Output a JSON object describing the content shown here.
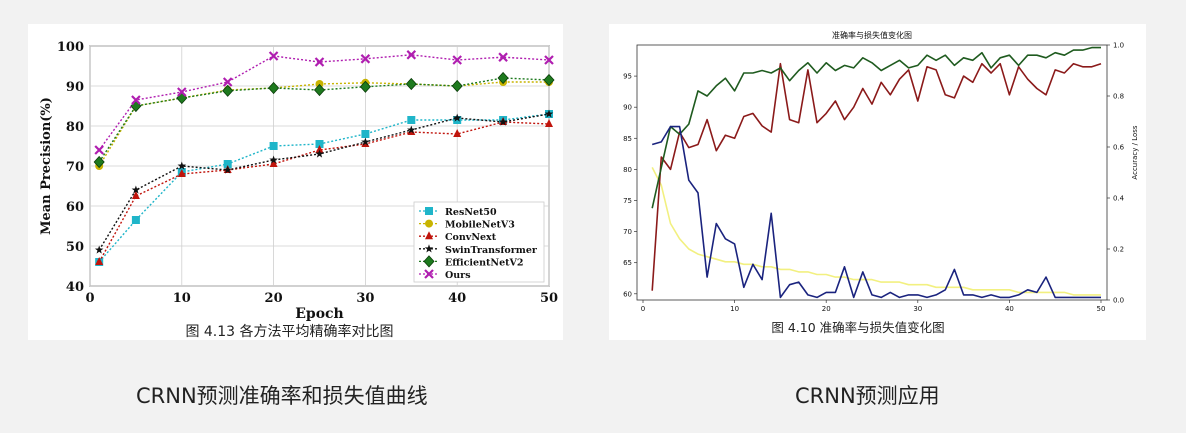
{
  "captions": {
    "left": "CRNN预测准确率和损失值曲线",
    "right": "CRNN预测应用"
  },
  "chart_data": [
    {
      "type": "line",
      "title": "",
      "figure_caption": "图 4.13  各方法平均精确率对比图",
      "xlabel": "Epoch",
      "ylabel": "Mean Precision(%)",
      "xlim": [
        0,
        50
      ],
      "ylim": [
        40,
        100
      ],
      "xticks": [
        0,
        10,
        20,
        30,
        40,
        50
      ],
      "yticks": [
        40,
        50,
        60,
        70,
        80,
        90,
        100
      ],
      "grid": true,
      "legend_position": "lower-right",
      "x": [
        1,
        5,
        10,
        15,
        20,
        25,
        30,
        35,
        40,
        45,
        50
      ],
      "series": [
        {
          "name": "ResNet50",
          "color": "#1fb5c9",
          "marker": "square",
          "values": [
            46,
            56.5,
            68.5,
            70.5,
            75,
            75.5,
            78,
            81.5,
            81.5,
            81.5,
            83
          ]
        },
        {
          "name": "MobileNetV3",
          "color": "#c8b400",
          "marker": "circle",
          "values": [
            70,
            85,
            87,
            89,
            89.5,
            90.5,
            90.8,
            90.5,
            90,
            91,
            91
          ]
        },
        {
          "name": "ConvNext",
          "color": "#c0140c",
          "marker": "triangle",
          "values": [
            46,
            62.5,
            68,
            69,
            70.5,
            74,
            75.5,
            78.5,
            78,
            81,
            80.5
          ]
        },
        {
          "name": "SwinTransformer",
          "color": "#111111",
          "marker": "star",
          "values": [
            49,
            64,
            70,
            69,
            71.5,
            73,
            76,
            79,
            82,
            81,
            83
          ]
        },
        {
          "name": "EfficientNetV2",
          "color": "#1e7a1e",
          "marker": "diamond",
          "values": [
            71,
            85,
            87,
            88.8,
            89.5,
            89,
            89.8,
            90.5,
            90,
            92,
            91.5
          ]
        },
        {
          "name": "Ours",
          "color": "#b01eb0",
          "marker": "x",
          "values": [
            74,
            86.5,
            88.5,
            91,
            97.5,
            96,
            96.8,
            97.8,
            96.5,
            97.2,
            96.5
          ]
        }
      ]
    },
    {
      "type": "line",
      "title": "准确率与损失值变化图",
      "figure_caption": "图 4.10  准确率与损失值变化图",
      "xlabel": "",
      "ylabel_left": "",
      "ylabel_right": "Accuracy / Loss",
      "xlim": [
        0,
        50
      ],
      "ylim_left": [
        59,
        100
      ],
      "ylim_right": [
        0,
        1.0
      ],
      "xticks": [
        0,
        10,
        20,
        30,
        40,
        50
      ],
      "yticks_left": [
        60,
        65,
        70,
        75,
        80,
        85,
        90,
        95
      ],
      "yticks_right": [
        "0.0",
        "0.2",
        "0.4",
        "0.6",
        "0.8",
        "1.0"
      ],
      "grid": false,
      "x": [
        1,
        2,
        3,
        4,
        5,
        6,
        7,
        8,
        9,
        10,
        11,
        12,
        13,
        14,
        15,
        16,
        17,
        18,
        19,
        20,
        21,
        22,
        23,
        24,
        25,
        26,
        27,
        28,
        29,
        30,
        31,
        32,
        33,
        34,
        35,
        36,
        37,
        38,
        39,
        40,
        41,
        42,
        43,
        44,
        45,
        46,
        47,
        48,
        49,
        50
      ],
      "series": [
        {
          "axis": "left",
          "color": "#8b1a1a",
          "values": [
            60.5,
            82,
            80,
            86,
            83.5,
            84,
            88,
            83,
            85.5,
            85,
            88.5,
            89,
            87,
            86,
            97,
            88,
            87.5,
            96,
            87.5,
            89,
            91,
            88,
            90,
            93,
            90.5,
            94,
            92,
            94.5,
            96,
            91,
            96.5,
            96,
            92,
            91.5,
            95,
            94,
            97,
            95.5,
            97,
            92,
            96.5,
            94.5,
            93,
            92,
            96,
            95.5,
            97,
            96.5,
            96.5,
            97
          ]
        },
        {
          "axis": "right",
          "color": "#1f5b1f",
          "values": [
            0.36,
            0.52,
            0.68,
            0.65,
            0.69,
            0.82,
            0.8,
            0.84,
            0.87,
            0.82,
            0.89,
            0.89,
            0.9,
            0.89,
            0.91,
            0.86,
            0.9,
            0.93,
            0.89,
            0.93,
            0.9,
            0.92,
            0.91,
            0.95,
            0.93,
            0.9,
            0.92,
            0.94,
            0.91,
            0.92,
            0.96,
            0.94,
            0.96,
            0.92,
            0.95,
            0.94,
            0.97,
            0.91,
            0.95,
            0.96,
            0.92,
            0.96,
            0.96,
            0.95,
            0.97,
            0.96,
            0.98,
            0.98,
            0.99,
            0.99
          ]
        },
        {
          "axis": "right",
          "color": "#1a237e",
          "values": [
            0.61,
            0.62,
            0.68,
            0.68,
            0.47,
            0.42,
            0.09,
            0.3,
            0.24,
            0.22,
            0.05,
            0.14,
            0.08,
            0.34,
            0.01,
            0.06,
            0.07,
            0.02,
            0.01,
            0.03,
            0.03,
            0.13,
            0.01,
            0.11,
            0.02,
            0.01,
            0.03,
            0.01,
            0.02,
            0.02,
            0.01,
            0.02,
            0.04,
            0.12,
            0.02,
            0.02,
            0.01,
            0.02,
            0.01,
            0.01,
            0.02,
            0.04,
            0.03,
            0.09,
            0.01,
            0.01,
            0.01,
            0.01,
            0.01,
            0.01
          ]
        },
        {
          "axis": "right",
          "color": "#f2f080",
          "values": [
            0.52,
            0.45,
            0.3,
            0.24,
            0.2,
            0.18,
            0.17,
            0.16,
            0.15,
            0.15,
            0.14,
            0.14,
            0.13,
            0.13,
            0.12,
            0.12,
            0.11,
            0.11,
            0.1,
            0.1,
            0.09,
            0.09,
            0.08,
            0.08,
            0.08,
            0.07,
            0.07,
            0.07,
            0.06,
            0.06,
            0.06,
            0.05,
            0.05,
            0.05,
            0.05,
            0.04,
            0.04,
            0.04,
            0.04,
            0.04,
            0.03,
            0.03,
            0.03,
            0.03,
            0.03,
            0.03,
            0.02,
            0.02,
            0.02,
            0.02
          ]
        }
      ]
    }
  ]
}
